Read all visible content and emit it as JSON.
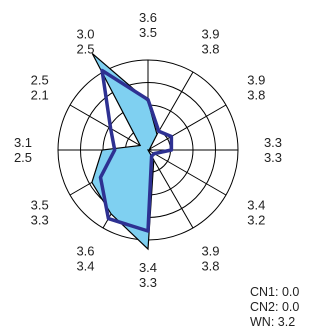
{
  "chart_data": {
    "type": "radar",
    "axis_count": 12,
    "spoke_labels": [
      [
        "3.6",
        "3.5"
      ],
      [
        "3.9",
        "3.8"
      ],
      [
        "3.9",
        "3.8"
      ],
      [
        "3.3",
        "3.3"
      ],
      [
        "3.4",
        "3.2"
      ],
      [
        "3.9",
        "3.8"
      ],
      [
        "3.4",
        "3.3"
      ],
      [
        "3.6",
        "3.4"
      ],
      [
        "3.5",
        "3.3"
      ],
      [
        "3.1",
        "2.5"
      ],
      [
        "2.5",
        "2.1"
      ],
      [
        "3.0",
        "2.5"
      ]
    ],
    "rings": 4,
    "series": [
      {
        "style": "fill",
        "values": [
          0.54,
          0.2,
          0.02,
          0.04,
          0.0,
          0.13,
          1.1,
          0.82,
          0.72,
          0.51,
          0.1,
          1.24
        ]
      },
      {
        "style": "line",
        "values": [
          0.56,
          0.24,
          0.3,
          0.26,
          0.08,
          0.08,
          0.9,
          0.88,
          0.61,
          0.37,
          0.48,
          1.02
        ]
      }
    ],
    "colors": {
      "fill": "#7fd0f1",
      "fill_edge": "#000000",
      "line": "#2e3192",
      "grid": "#000000"
    },
    "legend": [
      "CN1: 0.0",
      "CN2: 0.0",
      "WN: 3.2"
    ]
  }
}
